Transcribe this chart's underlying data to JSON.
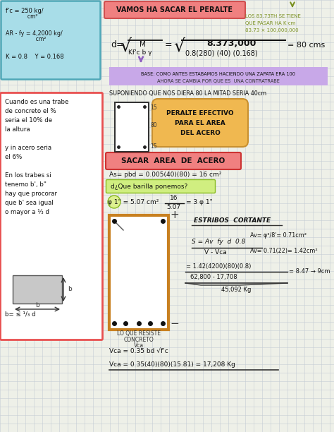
{
  "bg_color": "#eef0e8",
  "grid_color": "#c5cdd5",
  "title_banner": "VAMOS HA SACAR EL PERALTE",
  "title_banner_color": "#f08080",
  "top_left_box_color": "#a8dde8",
  "top_left_box_border": "#50a8b8",
  "right_note_color": "#7a9020",
  "right_note": [
    "LOS 83.73TH SE TIENE",
    "QUE PASAR HA K·cm",
    "83.73 × 100,000,000"
  ],
  "base_note_bg": "#c8a8e8",
  "suponing_line": "SUPONIENDO QUE NOS DIERA 80 LA MITAD SERIA 40cm",
  "left_box2_color": "#e85050",
  "left_box2_lines": [
    "Cuando es una trabe",
    "de concreto el %",
    "seria el 10% de",
    "la altura",
    "",
    "y in acero seria",
    "el 6%",
    "",
    "En los trabes si",
    "tenemo b', b\"",
    "hay que procorar",
    "que b' sea igual",
    "o mayor a ¹⁄₃ d"
  ],
  "peralte_blob_color": "#f0b850",
  "peralte_blob_lines": [
    "PERALTE EFECTIVO",
    "PARA EL AREA",
    "DEL ACERO"
  ],
  "sacar_banner": "SACAR  AREA  DE  ACERO",
  "sacar_banner_color": "#f08080",
  "barra_q_bg": "#d0ee80",
  "estribos_title": "ESTRIBOS  CORTANTE",
  "av1": "Av= φ³/8'= 0.71cm²",
  "av2": "Av= 0.71(22)= 1.42cm²"
}
